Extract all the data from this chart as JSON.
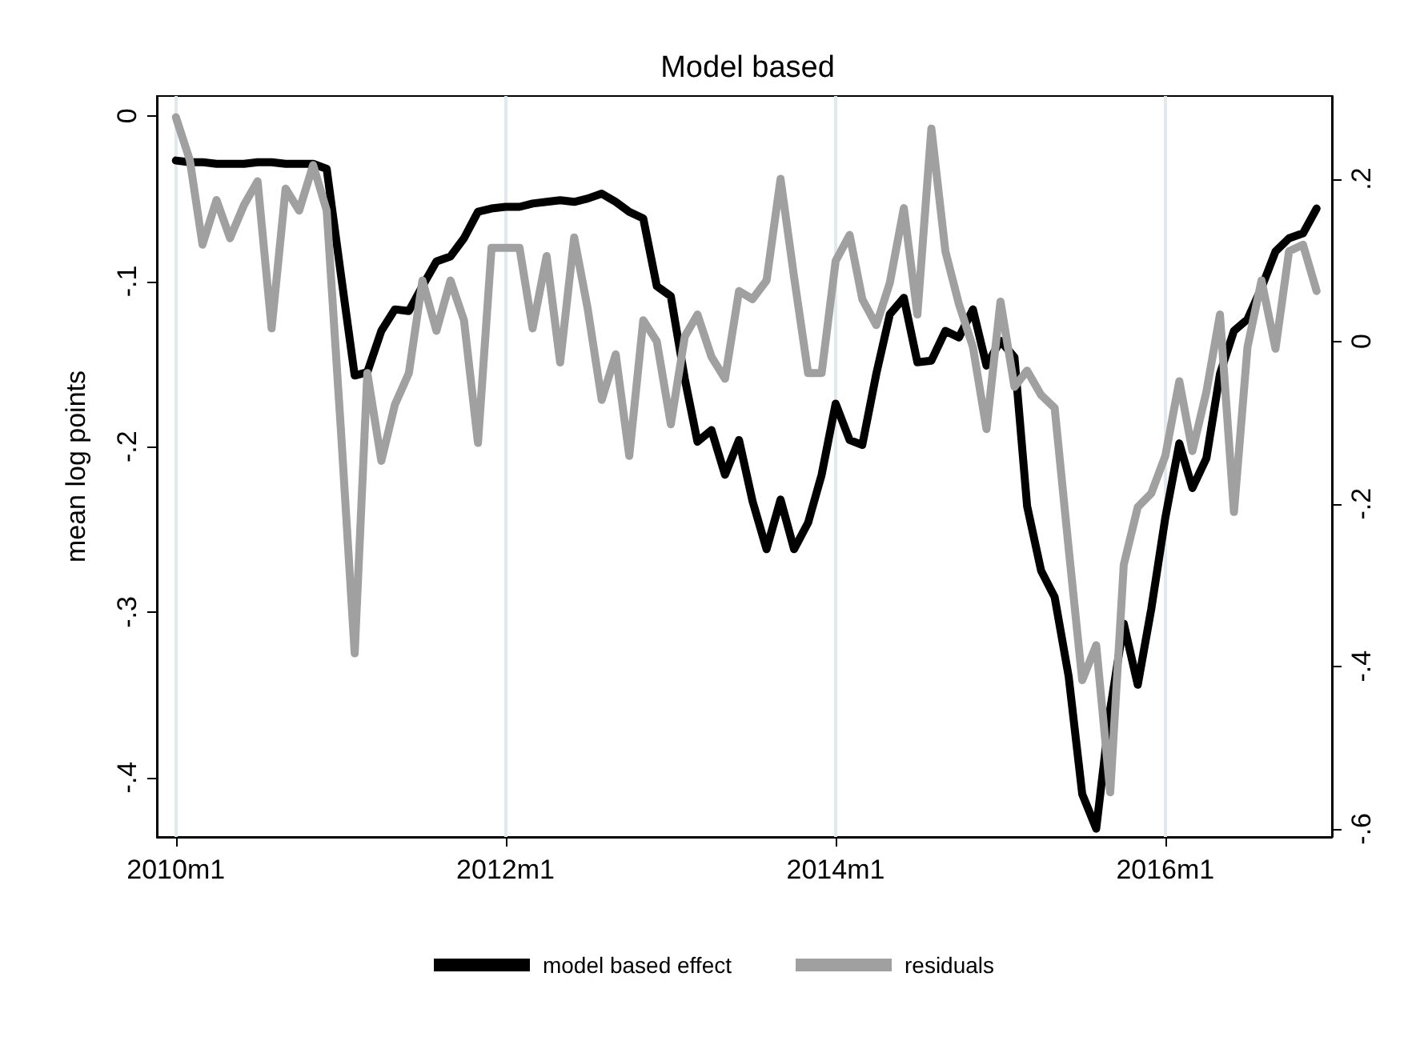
{
  "chart_data": {
    "type": "line",
    "title": "Model based",
    "ylabel": "mean log points",
    "x": [
      "2010-01",
      "2010-02",
      "2010-03",
      "2010-04",
      "2010-05",
      "2010-06",
      "2010-07",
      "2010-08",
      "2010-09",
      "2010-10",
      "2010-11",
      "2010-12",
      "2011-01",
      "2011-02",
      "2011-03",
      "2011-04",
      "2011-05",
      "2011-06",
      "2011-07",
      "2011-08",
      "2011-09",
      "2011-10",
      "2011-11",
      "2011-12",
      "2012-01",
      "2012-02",
      "2012-03",
      "2012-04",
      "2012-05",
      "2012-06",
      "2012-07",
      "2012-08",
      "2012-09",
      "2012-10",
      "2012-11",
      "2012-12",
      "2013-01",
      "2013-02",
      "2013-03",
      "2013-04",
      "2013-05",
      "2013-06",
      "2013-07",
      "2013-08",
      "2013-09",
      "2013-10",
      "2013-11",
      "2013-12",
      "2014-01",
      "2014-02",
      "2014-03",
      "2014-04",
      "2014-05",
      "2014-06",
      "2014-07",
      "2014-08",
      "2014-09",
      "2014-10",
      "2014-11",
      "2014-12",
      "2015-01",
      "2015-02",
      "2015-03",
      "2015-04",
      "2015-05",
      "2015-06",
      "2015-07",
      "2015-08",
      "2015-09",
      "2015-10",
      "2015-11",
      "2015-12",
      "2016-01",
      "2016-02",
      "2016-03",
      "2016-04",
      "2016-05",
      "2016-06",
      "2016-07",
      "2016-08",
      "2016-09",
      "2016-10",
      "2016-11",
      "2016-12"
    ],
    "series": [
      {
        "name": "model based effect",
        "color": "#000000",
        "values": [
          -0.027,
          -0.028,
          -0.028,
          -0.029,
          -0.029,
          -0.029,
          -0.028,
          -0.028,
          -0.029,
          -0.029,
          -0.029,
          -0.032,
          -0.095,
          -0.157,
          -0.155,
          -0.13,
          -0.117,
          -0.118,
          -0.103,
          -0.088,
          -0.085,
          -0.074,
          -0.058,
          -0.056,
          -0.055,
          -0.055,
          -0.053,
          -0.052,
          -0.051,
          -0.052,
          -0.05,
          -0.047,
          -0.052,
          -0.058,
          -0.062,
          -0.103,
          -0.109,
          -0.159,
          -0.197,
          -0.19,
          -0.217,
          -0.196,
          -0.233,
          -0.262,
          -0.232,
          -0.262,
          -0.246,
          -0.217,
          -0.174,
          -0.196,
          -0.199,
          -0.156,
          -0.12,
          -0.11,
          -0.149,
          -0.148,
          -0.13,
          -0.134,
          -0.117,
          -0.151,
          -0.136,
          -0.146,
          -0.236,
          -0.275,
          -0.291,
          -0.339,
          -0.41,
          -0.431,
          -0.359,
          -0.307,
          -0.344,
          -0.298,
          -0.243,
          -0.198,
          -0.225,
          -0.207,
          -0.156,
          -0.13,
          -0.123,
          -0.104,
          -0.082,
          -0.074,
          -0.071,
          -0.056
        ]
      },
      {
        "name": "residuals",
        "color": "#a0a0a0",
        "axis": "y2",
        "values": [
          0.276,
          0.223,
          0.119,
          0.174,
          0.127,
          0.168,
          0.197,
          0.016,
          0.188,
          0.161,
          0.217,
          0.161,
          -0.105,
          -0.384,
          -0.039,
          -0.147,
          -0.078,
          -0.039,
          0.075,
          0.013,
          0.075,
          0.026,
          -0.125,
          0.115,
          0.115,
          0.115,
          0.016,
          0.105,
          -0.026,
          0.128,
          0.04,
          -0.072,
          -0.016,
          -0.141,
          0.026,
          0.0,
          -0.102,
          0.006,
          0.033,
          -0.019,
          -0.046,
          0.062,
          0.052,
          0.075,
          0.2,
          0.079,
          -0.039,
          -0.039,
          0.099,
          0.131,
          0.052,
          0.02,
          0.072,
          0.164,
          0.033,
          0.262,
          0.111,
          0.046,
          -0.007,
          -0.108,
          0.049,
          -0.056,
          -0.036,
          -0.066,
          -0.082,
          -0.255,
          -0.417,
          -0.374,
          -0.555,
          -0.275,
          -0.204,
          -0.187,
          -0.141,
          -0.049,
          -0.135,
          -0.062,
          0.033,
          -0.21,
          -0.007,
          0.075,
          -0.009,
          0.111,
          0.119,
          0.062
        ]
      }
    ],
    "xlim": [
      "2009-11-20",
      "2017-01-04"
    ],
    "xticks": [
      {
        "value": "2010-01",
        "label": "2010m1"
      },
      {
        "value": "2012-01",
        "label": "2012m1"
      },
      {
        "value": "2014-01",
        "label": "2014m1"
      },
      {
        "value": "2016-01",
        "label": "2016m1"
      }
    ],
    "ylim": [
      -0.436,
      0.012
    ],
    "yticks": [
      0,
      {
        "value": -0.1,
        "label": "-.1"
      },
      {
        "value": -0.2,
        "label": "-.2"
      },
      {
        "value": -0.3,
        "label": "-.3"
      },
      {
        "value": -0.4,
        "label": "-.4"
      }
    ],
    "y2lim": [
      -0.61,
      0.302
    ],
    "y2ticks": [
      {
        "value": 0.2,
        "label": ".2"
      },
      0,
      {
        "value": -0.2,
        "label": "-.2"
      },
      {
        "value": -0.4,
        "label": "-.4"
      },
      {
        "value": -0.6,
        "label": "-.6"
      }
    ],
    "grid": "x",
    "legend": "bottom",
    "marker": "none",
    "line_style": "solid"
  }
}
